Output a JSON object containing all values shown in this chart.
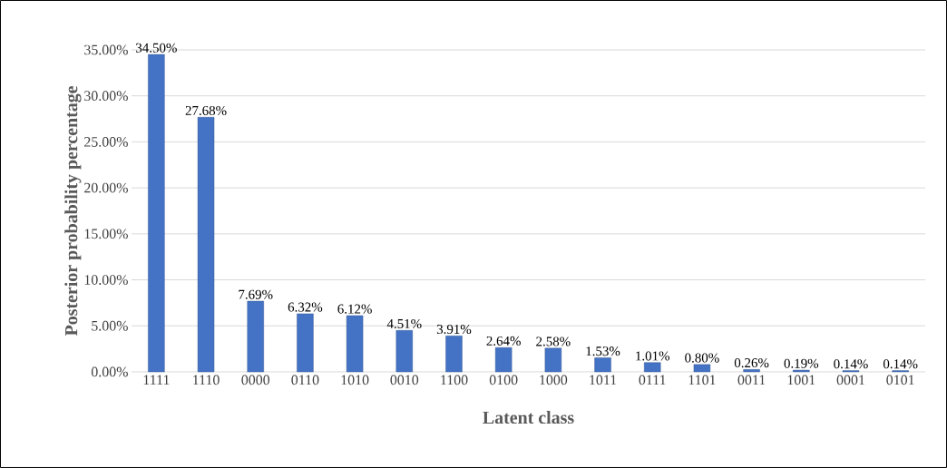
{
  "chart_data": {
    "type": "bar",
    "xlabel": "Latent class",
    "ylabel": "Posterior probability percentage",
    "categories": [
      "1111",
      "1110",
      "0000",
      "0110",
      "1010",
      "0010",
      "1100",
      "0100",
      "1000",
      "1011",
      "0111",
      "1101",
      "0011",
      "1001",
      "0001",
      "0101"
    ],
    "values": [
      34.5,
      27.68,
      7.69,
      6.32,
      6.12,
      4.51,
      3.91,
      2.64,
      2.58,
      1.53,
      1.01,
      0.8,
      0.26,
      0.19,
      0.14,
      0.14
    ],
    "value_labels": [
      "34.50%",
      "27.68%",
      "7.69%",
      "6.32%",
      "6.12%",
      "4.51%",
      "3.91%",
      "2.64%",
      "2.58%",
      "1.53%",
      "1.01%",
      "0.80%",
      "0.26%",
      "0.19%",
      "0.14%",
      "0.14%"
    ],
    "color": "#4472c4",
    "ylim": [
      0,
      35
    ],
    "yticks": [
      {
        "value": 0,
        "label": "0.00%"
      },
      {
        "value": 5,
        "label": "5.00%"
      },
      {
        "value": 10,
        "label": "10.00%"
      },
      {
        "value": 15,
        "label": "15.00%"
      },
      {
        "value": 20,
        "label": "20.00%"
      },
      {
        "value": 25,
        "label": "25.00%"
      },
      {
        "value": 30,
        "label": "30.00%"
      },
      {
        "value": 35,
        "label": "35.00%"
      }
    ],
    "grid": "y"
  }
}
